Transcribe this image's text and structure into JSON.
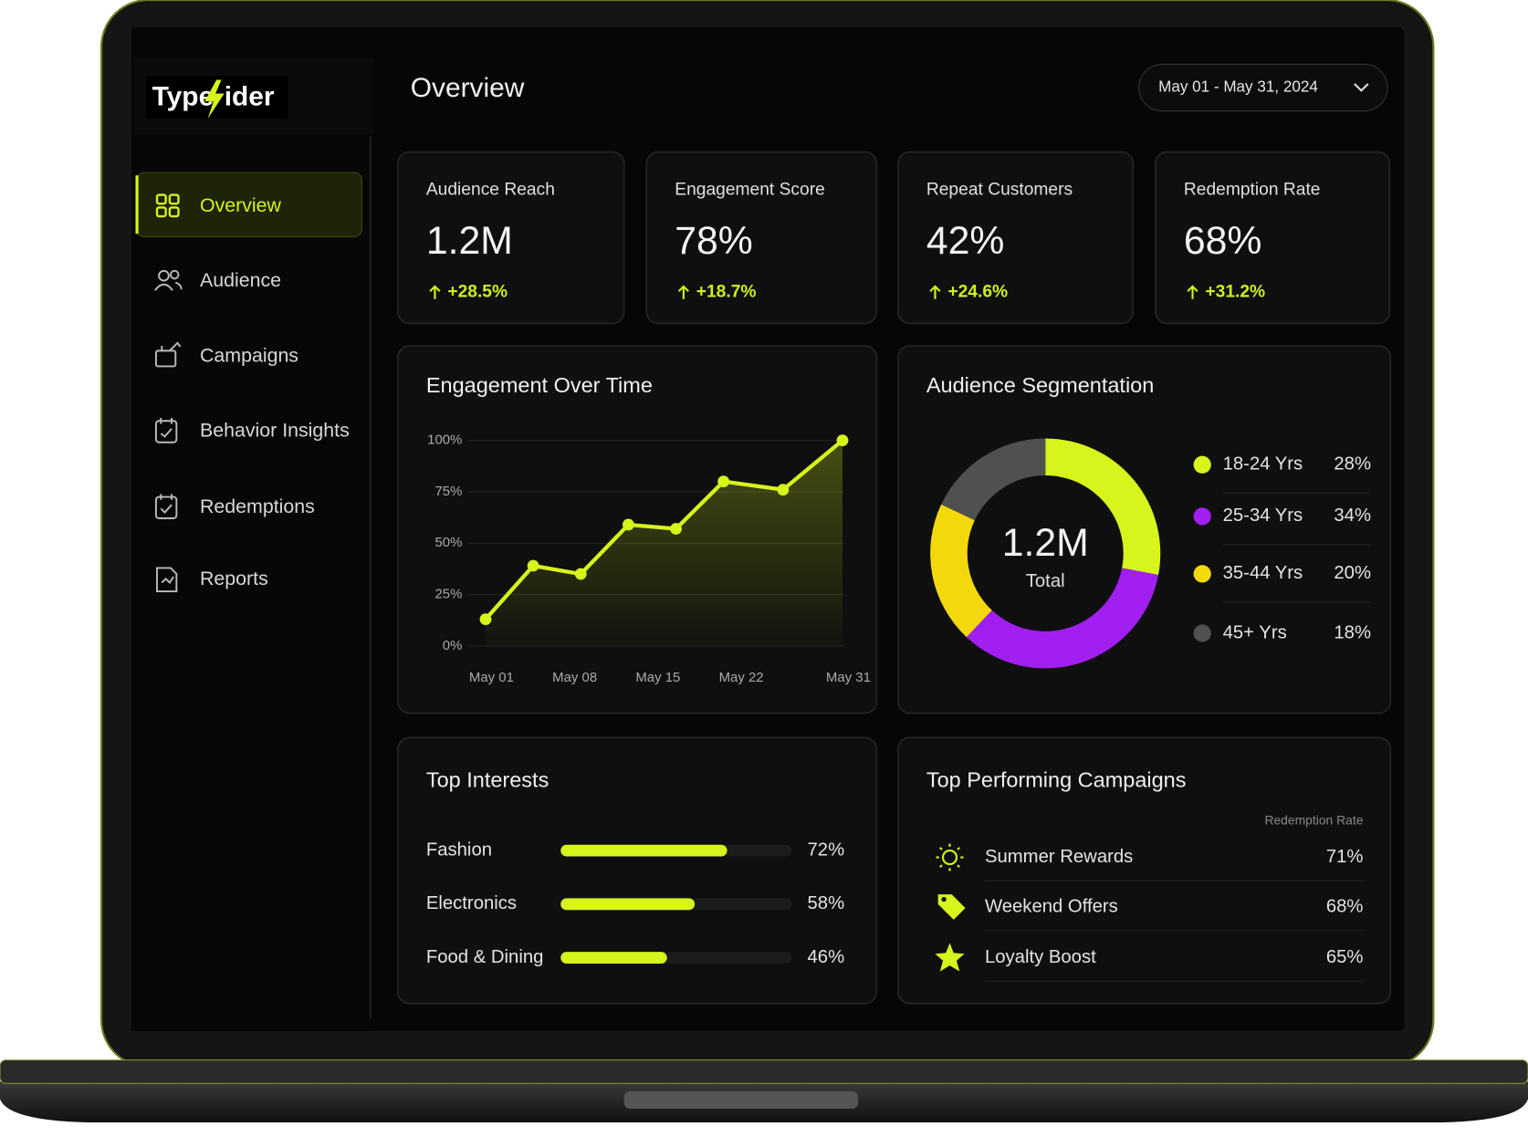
{
  "sidebar": {
    "logo": {
      "left": "Type",
      "right": "ider"
    },
    "nav": [
      "Overview",
      "Audience",
      "Campaigns",
      "Behavior Insights",
      "Redemptions",
      "Reports"
    ]
  },
  "header": {
    "title": "Overview",
    "date_range": "May 01 - May 31, 2024"
  },
  "kpis": [
    {
      "label": "Audience Reach",
      "value": "1.2M",
      "change": "+28.5%"
    },
    {
      "label": "Engagement Score",
      "value": "78%",
      "change": "+18.7%"
    },
    {
      "label": "Repeat Customers",
      "value": "42%",
      "change": "+24.6%"
    },
    {
      "label": "Redemption Rate",
      "value": "68%",
      "change": "+31.2%"
    }
  ],
  "engagement": {
    "type": "line",
    "title": "Engagement Over Time",
    "x": [
      1,
      5,
      9,
      13,
      17,
      21,
      26,
      31
    ],
    "values": [
      13,
      39,
      35,
      59,
      57,
      80,
      76,
      100
    ],
    "color": "#d7f41c",
    "xlim": [
      1,
      31
    ],
    "xticks": [
      {
        "value": 1,
        "label": "May 01"
      },
      {
        "value": 8,
        "label": "May 08"
      },
      {
        "value": 15,
        "label": "May 15"
      },
      {
        "value": 22,
        "label": "May 22"
      },
      {
        "value": 31,
        "label": "May 31"
      }
    ],
    "ylim": [
      0,
      100
    ],
    "yticks": [
      {
        "value": 0,
        "label": "0%"
      },
      {
        "value": 25,
        "label": "25%"
      },
      {
        "value": 50,
        "label": "50%"
      },
      {
        "value": 75,
        "label": "75%"
      },
      {
        "value": 100,
        "label": "100%"
      }
    ],
    "grid": true
  },
  "segmentation": {
    "type": "pie",
    "title": "Audience Segmentation",
    "center_value": "1.2M",
    "center_label": "Total",
    "categories": [
      "18-24 Yrs",
      "25-34 Yrs",
      "35-44 Yrs",
      "45+ Yrs"
    ],
    "values": [
      28,
      34,
      20,
      18
    ],
    "value_labels": [
      "28%",
      "34%",
      "20%",
      "18%"
    ],
    "colors": [
      "#d7f41c",
      "#a21ff2",
      "#f3d90c",
      "#505050"
    ]
  },
  "interests": {
    "type": "bar",
    "title": "Top Interests",
    "categories": [
      "Fashion",
      "Electronics",
      "Food & Dining"
    ],
    "values": [
      72,
      58,
      46
    ],
    "value_labels": [
      "72%",
      "58%",
      "46%"
    ],
    "xlim": [
      0,
      100
    ],
    "color": "#d7f41c"
  },
  "campaigns": {
    "title": "Top Performing Campaigns",
    "column": "Redemption Rate",
    "rows": [
      [
        "Summer Rewards",
        "71%"
      ],
      [
        "Weekend Offers",
        "68%"
      ],
      [
        "Loyalty Boost",
        "65%"
      ]
    ]
  }
}
